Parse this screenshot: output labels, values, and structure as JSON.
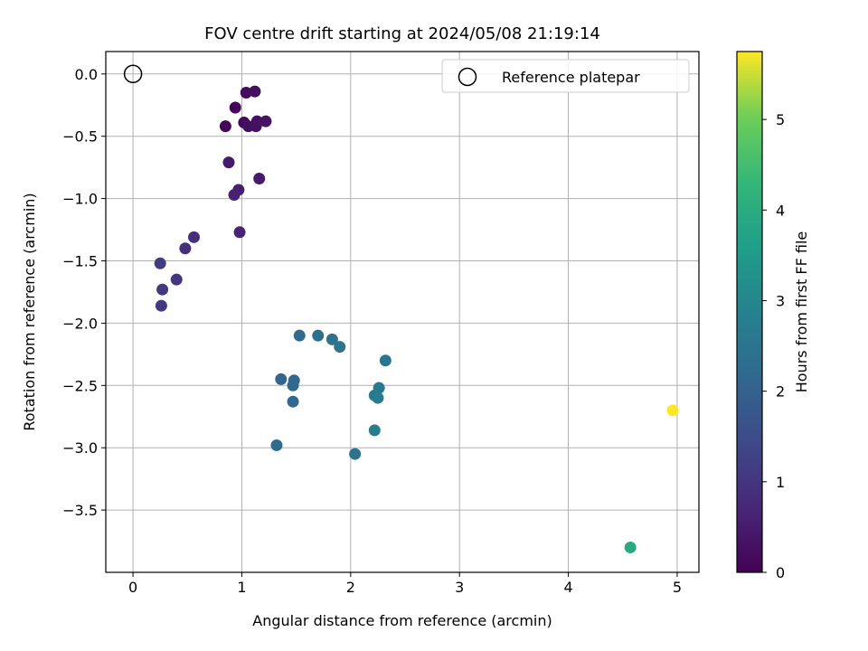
{
  "chart_data": {
    "type": "scatter",
    "title": "FOV centre drift starting at 2024/05/08 21:19:14",
    "xlabel": "Angular distance from reference (arcmin)",
    "ylabel": "Rotation from reference (arcmin)",
    "xlim": [
      -0.25,
      5.2
    ],
    "ylim": [
      -4.0,
      0.18
    ],
    "xticks": [
      0,
      1,
      2,
      3,
      4,
      5
    ],
    "xtick_labels": [
      "0",
      "1",
      "2",
      "3",
      "4",
      "5"
    ],
    "yticks": [
      0.0,
      -0.5,
      -1.0,
      -1.5,
      -2.0,
      -2.5,
      -3.0,
      -3.5
    ],
    "ytick_labels": [
      "0.0",
      "−0.5",
      "−1.0",
      "−1.5",
      "−2.0",
      "−2.5",
      "−3.0",
      "−3.5"
    ],
    "grid": true,
    "legend": {
      "position": "top-right",
      "label": "Reference platepar"
    },
    "reference": {
      "x": 0,
      "y": 0
    },
    "colorbar": {
      "label": "Hours from first FF file",
      "range": [
        0,
        5.75
      ],
      "ticks": [
        0,
        1,
        2,
        3,
        4,
        5
      ],
      "tick_labels": [
        "0",
        "1",
        "2",
        "3",
        "4",
        "5"
      ],
      "colormap": "viridis"
    },
    "points": [
      {
        "x": 1.04,
        "y": -0.15,
        "c": 0.18
      },
      {
        "x": 1.12,
        "y": -0.14,
        "c": 0.22
      },
      {
        "x": 0.94,
        "y": -0.27,
        "c": 0.05
      },
      {
        "x": 0.85,
        "y": -0.42,
        "c": 0.1
      },
      {
        "x": 1.02,
        "y": -0.39,
        "c": 0.12
      },
      {
        "x": 1.06,
        "y": -0.42,
        "c": 0.25
      },
      {
        "x": 1.13,
        "y": -0.42,
        "c": 0.28
      },
      {
        "x": 1.14,
        "y": -0.38,
        "c": 0.3
      },
      {
        "x": 1.22,
        "y": -0.38,
        "c": 0.32
      },
      {
        "x": 0.88,
        "y": -0.71,
        "c": 0.45
      },
      {
        "x": 1.16,
        "y": -0.84,
        "c": 0.48
      },
      {
        "x": 0.97,
        "y": -0.93,
        "c": 0.55
      },
      {
        "x": 0.93,
        "y": -0.97,
        "c": 0.6
      },
      {
        "x": 0.98,
        "y": -1.27,
        "c": 0.65
      },
      {
        "x": 0.56,
        "y": -1.31,
        "c": 0.85
      },
      {
        "x": 0.48,
        "y": -1.4,
        "c": 0.9
      },
      {
        "x": 0.25,
        "y": -1.52,
        "c": 1.15
      },
      {
        "x": 0.4,
        "y": -1.65,
        "c": 1.0
      },
      {
        "x": 0.27,
        "y": -1.73,
        "c": 1.08
      },
      {
        "x": 0.26,
        "y": -1.86,
        "c": 1.12
      },
      {
        "x": 1.53,
        "y": -2.1,
        "c": 2.25
      },
      {
        "x": 1.7,
        "y": -2.1,
        "c": 2.35
      },
      {
        "x": 1.83,
        "y": -2.13,
        "c": 2.4
      },
      {
        "x": 1.9,
        "y": -2.19,
        "c": 2.45
      },
      {
        "x": 2.32,
        "y": -2.3,
        "c": 2.55
      },
      {
        "x": 1.36,
        "y": -2.45,
        "c": 2.1
      },
      {
        "x": 1.48,
        "y": -2.46,
        "c": 2.12
      },
      {
        "x": 1.47,
        "y": -2.5,
        "c": 2.15
      },
      {
        "x": 1.47,
        "y": -2.63,
        "c": 2.18
      },
      {
        "x": 2.26,
        "y": -2.52,
        "c": 2.6
      },
      {
        "x": 2.22,
        "y": -2.58,
        "c": 2.65
      },
      {
        "x": 2.25,
        "y": -2.6,
        "c": 2.68
      },
      {
        "x": 2.22,
        "y": -2.86,
        "c": 2.7
      },
      {
        "x": 1.32,
        "y": -2.98,
        "c": 2.2
      },
      {
        "x": 2.04,
        "y": -3.05,
        "c": 2.5
      },
      {
        "x": 4.96,
        "y": -2.7,
        "c": 5.75
      },
      {
        "x": 4.57,
        "y": -3.8,
        "c": 3.9
      }
    ]
  }
}
